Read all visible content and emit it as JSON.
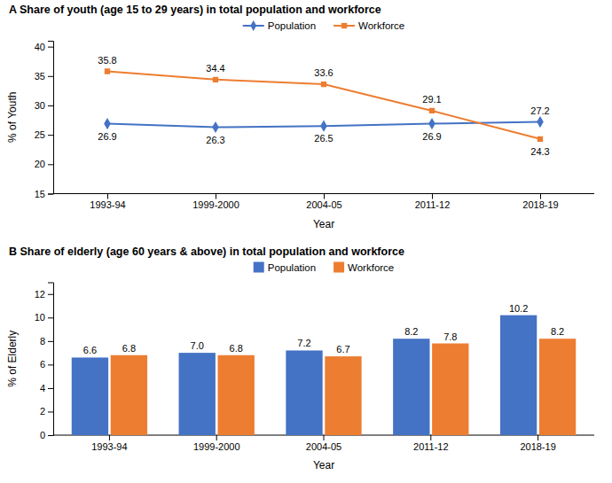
{
  "chart_data": [
    {
      "type": "line",
      "title": "A Share of youth (age 15 to 29 years) in total population and workforce",
      "categories": [
        "1993-94",
        "1999-2000",
        "2004-05",
        "2011-12",
        "2018-19"
      ],
      "series": [
        {
          "name": "Population",
          "color": "#4472C4",
          "marker": "diamond",
          "values": [
            26.9,
            26.3,
            26.5,
            26.9,
            27.2
          ]
        },
        {
          "name": "Workforce",
          "color": "#ED7D31",
          "marker": "square",
          "values": [
            35.8,
            34.4,
            33.6,
            29.1,
            24.3
          ]
        }
      ],
      "xlabel": "Year",
      "ylabel": "% of Youth",
      "ylim": [
        15,
        41
      ],
      "yticks": [
        15,
        20,
        25,
        30,
        35,
        40
      ],
      "grid": false,
      "legend": "top",
      "data_labels": true
    },
    {
      "type": "bar",
      "title": "B Share of elderly (age 60 years & above) in total population and workforce",
      "categories": [
        "1993-94",
        "1999-2000",
        "2004-05",
        "2011-12",
        "2018-19"
      ],
      "series": [
        {
          "name": "Population",
          "color": "#4472C4",
          "values": [
            6.6,
            7.0,
            7.2,
            8.2,
            10.2
          ],
          "value_labels": [
            "6.6",
            "7.0",
            "7.2",
            "8.2",
            "10.2"
          ]
        },
        {
          "name": "Workforce",
          "color": "#ED7D31",
          "values": [
            6.8,
            6.8,
            6.7,
            7.8,
            8.2
          ]
        }
      ],
      "xlabel": "Year",
      "ylabel": "% of Elderly",
      "ylim": [
        0,
        13
      ],
      "yticks": [
        0,
        2,
        4,
        6,
        8,
        10,
        12
      ],
      "grid": false,
      "legend": "top",
      "data_labels": true
    }
  ]
}
